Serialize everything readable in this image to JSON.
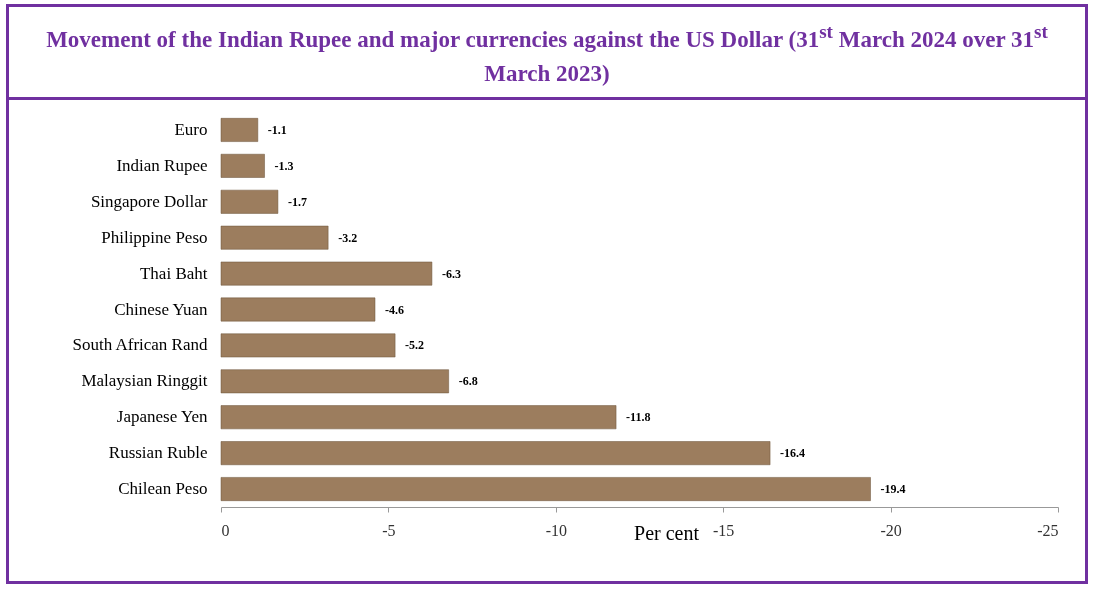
{
  "chart_data": {
    "type": "bar",
    "orientation": "horizontal",
    "title": "Movement of the Indian Rupee and major currencies against the US Dollar (31$^{st}$ March 2024 over 31$^{st}$ March 2023)",
    "categories": [
      "Euro",
      "Indian Rupee",
      "Singapore Dollar",
      "Philippine Peso",
      "Thai Baht",
      "Chinese Yuan",
      "South African Rand",
      "Malaysian Ringgit",
      "Japanese Yen",
      "Russian Ruble",
      "Chilean Peso"
    ],
    "values": [
      -1.1,
      -1.3,
      -1.7,
      -3.2,
      -6.3,
      -4.6,
      -5.2,
      -6.8,
      -11.8,
      -16.4,
      -19.4
    ],
    "color": "#9c7d5e",
    "xlabel": "Per cent",
    "xlim": [
      0,
      -25
    ],
    "xticks": [
      0,
      -5,
      -10,
      -15,
      -20,
      -25
    ],
    "data_labels": true,
    "grid": false
  }
}
